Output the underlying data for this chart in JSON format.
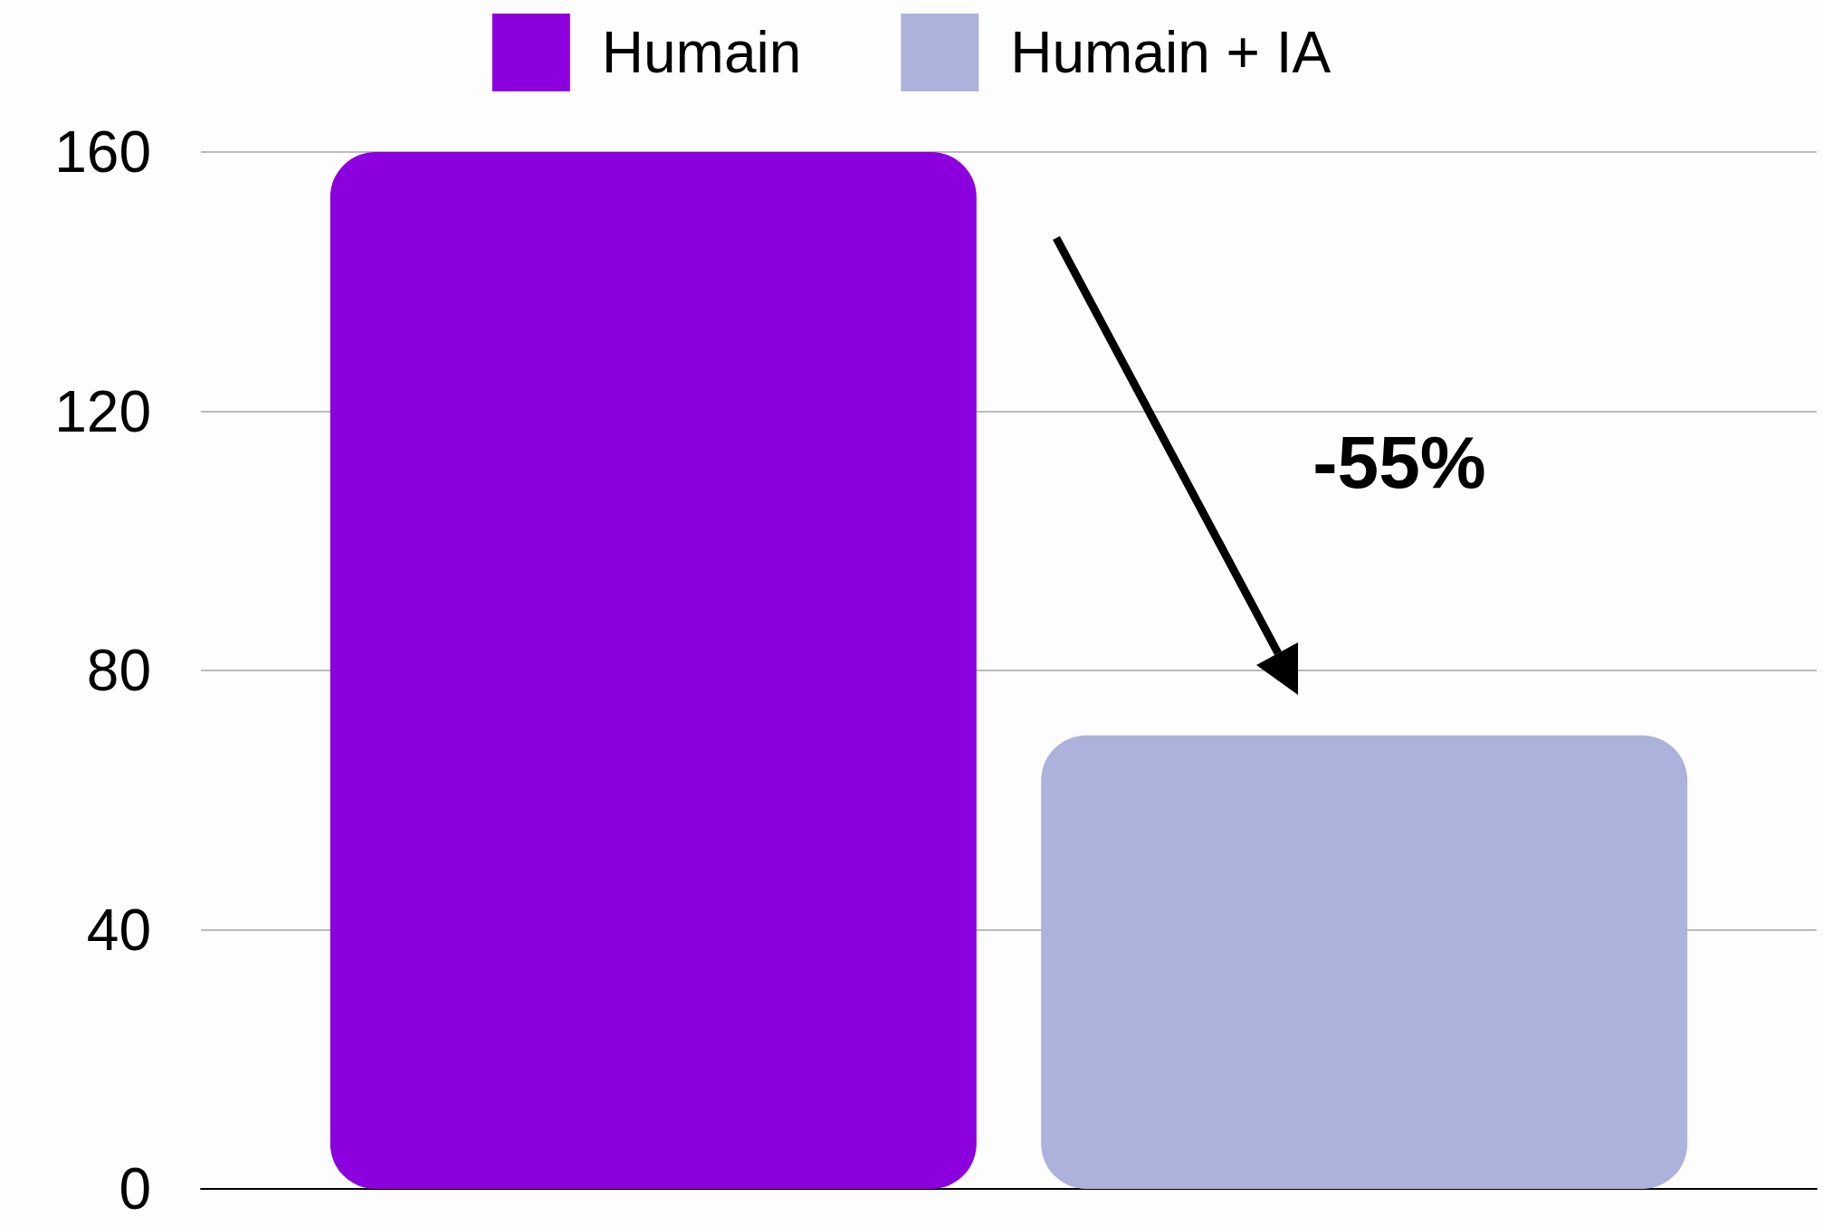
{
  "chart_data": {
    "type": "bar",
    "categories": [
      null
    ],
    "series": [
      {
        "name": "Humain",
        "color": "#8b00dc",
        "values": [
          160
        ]
      },
      {
        "name": "Humain + IA",
        "color": "#adb2dc",
        "values": [
          70
        ]
      }
    ],
    "ylim": [
      0,
      160
    ],
    "yticks": [
      0,
      40,
      80,
      120,
      160
    ],
    "grid": "y",
    "legend": "top",
    "annotations": [
      "-55%"
    ]
  }
}
